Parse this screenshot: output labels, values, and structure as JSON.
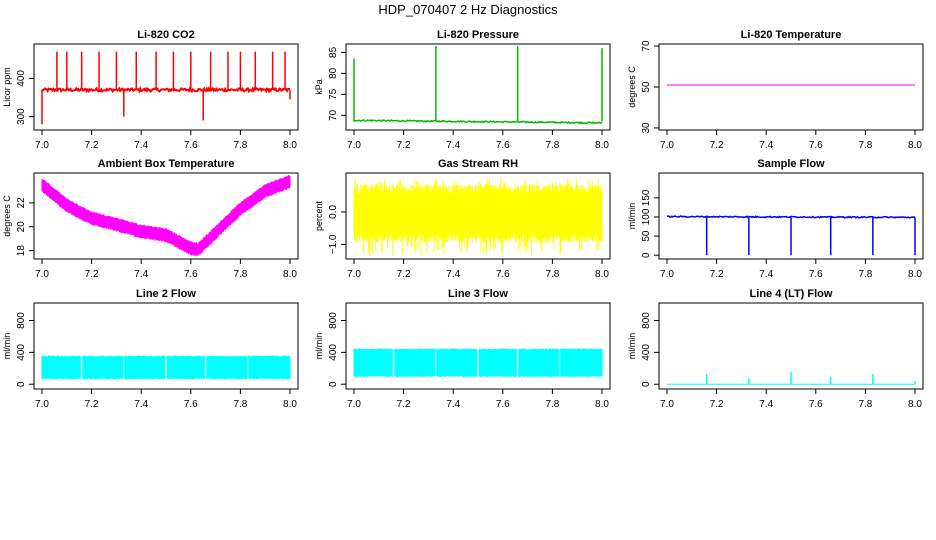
{
  "figure": {
    "title": "HDP_070407  2 Hz Diagnostics"
  },
  "chart_data": [
    {
      "type": "line",
      "title": "Li-820 CO2",
      "xlabel": "",
      "ylabel": "Licor ppm",
      "xlim": [
        7.0,
        8.0
      ],
      "ylim": [
        265,
        490
      ],
      "x_ticks": [
        7.0,
        7.2,
        7.4,
        7.6,
        7.8,
        8.0
      ],
      "y_ticks": [
        300,
        400
      ],
      "color": "#ff0000",
      "series": [
        {
          "baseline": 370,
          "noise": 4,
          "spikes": [
            {
              "x": 7.0,
              "y": 280
            },
            {
              "x": 7.06,
              "y": 470
            },
            {
              "x": 7.1,
              "y": 470
            },
            {
              "x": 7.16,
              "y": 470
            },
            {
              "x": 7.23,
              "y": 470
            },
            {
              "x": 7.3,
              "y": 470
            },
            {
              "x": 7.33,
              "y": 300
            },
            {
              "x": 7.38,
              "y": 470
            },
            {
              "x": 7.46,
              "y": 470
            },
            {
              "x": 7.53,
              "y": 470
            },
            {
              "x": 7.6,
              "y": 470
            },
            {
              "x": 7.65,
              "y": 290
            },
            {
              "x": 7.68,
              "y": 470
            },
            {
              "x": 7.75,
              "y": 470
            },
            {
              "x": 7.8,
              "y": 470
            },
            {
              "x": 7.86,
              "y": 470
            },
            {
              "x": 7.93,
              "y": 470
            },
            {
              "x": 7.98,
              "y": 470
            },
            {
              "x": 8.0,
              "y": 345
            }
          ]
        }
      ]
    },
    {
      "type": "line",
      "title": "Li-820 Pressure",
      "xlabel": "",
      "ylabel": "kPa",
      "xlim": [
        7.0,
        8.0
      ],
      "ylim": [
        66.5,
        87
      ],
      "x_ticks": [
        7.0,
        7.2,
        7.4,
        7.6,
        7.8,
        8.0
      ],
      "y_ticks": [
        70,
        75,
        80,
        85
      ],
      "color": "#00bb00",
      "series": [
        {
          "baseline_start": 68.8,
          "baseline_end": 68.2,
          "noise": 0.15,
          "spikes": [
            {
              "x": 7.0,
              "y": 83.5
            },
            {
              "x": 7.33,
              "y": 86.5
            },
            {
              "x": 7.66,
              "y": 86.5
            },
            {
              "x": 8.0,
              "y": 86
            }
          ]
        }
      ]
    },
    {
      "type": "line",
      "title": "Li-820 Temperature",
      "xlabel": "",
      "ylabel": "degrees C",
      "xlim": [
        7.0,
        8.0
      ],
      "ylim": [
        29,
        71
      ],
      "x_ticks": [
        7.0,
        7.2,
        7.4,
        7.6,
        7.8,
        8.0
      ],
      "y_ticks": [
        30,
        50,
        70
      ],
      "color": "#ff00ff",
      "series": [
        {
          "value": 51
        }
      ]
    },
    {
      "type": "line",
      "title": "Ambient Box Temperature",
      "xlabel": "",
      "ylabel": "degrees C",
      "xlim": [
        7.0,
        8.0
      ],
      "ylim": [
        17.3,
        24.5
      ],
      "x_ticks": [
        7.0,
        7.2,
        7.4,
        7.6,
        7.8,
        8.0
      ],
      "y_ticks": [
        18,
        20,
        22
      ],
      "color": "#ff00ff",
      "series": [
        {
          "points": [
            [
              7.0,
              23.5
            ],
            [
              7.1,
              21.8
            ],
            [
              7.2,
              20.7
            ],
            [
              7.3,
              20.2
            ],
            [
              7.4,
              19.6
            ],
            [
              7.5,
              19.3
            ],
            [
              7.6,
              18.2
            ],
            [
              7.63,
              18.1
            ],
            [
              7.7,
              19.5
            ],
            [
              7.8,
              21.5
            ],
            [
              7.9,
              23.0
            ],
            [
              8.0,
              23.8
            ]
          ],
          "band": 0.9
        }
      ]
    },
    {
      "type": "line",
      "title": "Gas Stream RH",
      "xlabel": "",
      "ylabel": "percent",
      "xlim": [
        7.0,
        8.0
      ],
      "ylim": [
        -1.45,
        1.2
      ],
      "x_ticks": [
        7.0,
        7.2,
        7.4,
        7.6,
        7.8,
        8.0
      ],
      "y_ticks": [
        -1.0,
        0.0
      ],
      "color": "#ffff00",
      "series": [
        {
          "center": 0.0,
          "band_lo": -0.8,
          "band_hi": 0.7,
          "spike_lo": -1.35,
          "spike_hi": 1.05
        }
      ]
    },
    {
      "type": "line",
      "title": "Sample Flow",
      "xlabel": "",
      "ylabel": "ml/min",
      "xlim": [
        7.0,
        8.0
      ],
      "ylim": [
        -10,
        215
      ],
      "x_ticks": [
        7.0,
        7.2,
        7.4,
        7.6,
        7.8,
        8.0
      ],
      "y_ticks": [
        0,
        50,
        100,
        150
      ],
      "color": "#0000ff",
      "series": [
        {
          "baseline_start": 101,
          "baseline_end": 99,
          "drops_to": 0,
          "drops": [
            7.16,
            7.33,
            7.5,
            7.66,
            7.83,
            8.0
          ]
        }
      ]
    },
    {
      "type": "area",
      "title": "Line 2 Flow",
      "xlabel": "",
      "ylabel": "ml/min",
      "xlim": [
        7.0,
        8.0
      ],
      "ylim": [
        -60,
        1020
      ],
      "x_ticks": [
        7.0,
        7.2,
        7.4,
        7.6,
        7.8,
        8.0
      ],
      "y_ticks": [
        0,
        400,
        800
      ],
      "color": "#00ffff",
      "series": [
        {
          "low": 60,
          "high": 360,
          "gaps": [
            7.16,
            7.33,
            7.5,
            7.66,
            7.83
          ]
        }
      ]
    },
    {
      "type": "area",
      "title": "Line 3 Flow",
      "xlabel": "",
      "ylabel": "ml/min",
      "xlim": [
        7.0,
        8.0
      ],
      "ylim": [
        -60,
        1020
      ],
      "x_ticks": [
        7.0,
        7.2,
        7.4,
        7.6,
        7.8,
        8.0
      ],
      "y_ticks": [
        0,
        400,
        800
      ],
      "color": "#00ffff",
      "series": [
        {
          "low": 90,
          "high": 450,
          "gaps": [
            7.16,
            7.33,
            7.5,
            7.66,
            7.83
          ]
        }
      ]
    },
    {
      "type": "line",
      "title": "Line 4 (LT) Flow",
      "xlabel": "",
      "ylabel": "ml/min",
      "xlim": [
        7.0,
        8.0
      ],
      "ylim": [
        -60,
        1020
      ],
      "x_ticks": [
        7.0,
        7.2,
        7.4,
        7.6,
        7.8,
        8.0
      ],
      "y_ticks": [
        0,
        400,
        800
      ],
      "color": "#00ffff",
      "series": [
        {
          "baseline": 0,
          "spikes": [
            {
              "x": 7.16,
              "y": 130
            },
            {
              "x": 7.33,
              "y": 80
            },
            {
              "x": 7.5,
              "y": 150
            },
            {
              "x": 7.66,
              "y": 90
            },
            {
              "x": 7.83,
              "y": 130
            },
            {
              "x": 8.0,
              "y": 40
            }
          ]
        }
      ]
    }
  ]
}
